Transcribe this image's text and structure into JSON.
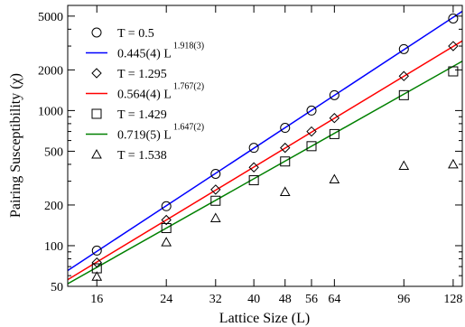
{
  "chart_data": {
    "type": "scatter",
    "title": "",
    "xlabel": "Lattice Size (L)",
    "ylabel": "Pairing Susceptibility (χ)",
    "xscale": "log",
    "yscale": "log",
    "xlim": [
      13.5,
      135
    ],
    "ylim": [
      50,
      6000
    ],
    "xticks": [
      16,
      24,
      32,
      40,
      48,
      56,
      64,
      96,
      128
    ],
    "xtick_labels": [
      "16",
      "24",
      "32",
      "40",
      "48",
      "56",
      "64",
      "96",
      "128"
    ],
    "yticks": [
      50,
      100,
      200,
      500,
      1000,
      2000,
      5000
    ],
    "ytick_labels": [
      "50",
      "100",
      "200",
      "500",
      "1000",
      "2000",
      "5000"
    ],
    "grid": false,
    "legend_position": "top-left",
    "series": [
      {
        "name": "T = 0.5",
        "kind": "points",
        "marker": "circle",
        "color": "#000000",
        "x": [
          16,
          24,
          32,
          40,
          48,
          56,
          64,
          96,
          128
        ],
        "y": [
          92,
          196,
          340,
          530,
          745,
          1000,
          1300,
          2850,
          4800
        ]
      },
      {
        "name_main": "0.445(4) L",
        "name_exp": "1.918(3)",
        "kind": "fit",
        "color": "#0000ff",
        "coef": 0.445,
        "exponent": 1.918
      },
      {
        "name": "T = 1.295",
        "kind": "points",
        "marker": "diamond",
        "color": "#000000",
        "x": [
          16,
          24,
          32,
          40,
          48,
          56,
          64,
          96,
          128
        ],
        "y": [
          75,
          155,
          260,
          380,
          530,
          700,
          880,
          1800,
          3000
        ]
      },
      {
        "name_main": "0.564(4) L",
        "name_exp": "1.767(2)",
        "kind": "fit",
        "color": "#ff0000",
        "coef": 0.564,
        "exponent": 1.767
      },
      {
        "name": "T = 1.429",
        "kind": "points",
        "marker": "square",
        "color": "#000000",
        "x": [
          16,
          24,
          32,
          40,
          48,
          56,
          64,
          96,
          128
        ],
        "y": [
          68,
          135,
          215,
          305,
          420,
          545,
          670,
          1300,
          1950
        ]
      },
      {
        "name_main": "0.719(5) L",
        "name_exp": "1.647(2)",
        "kind": "fit",
        "color": "#008000",
        "coef": 0.719,
        "exponent": 1.647
      },
      {
        "name": "T = 1.538",
        "kind": "points",
        "marker": "triangle",
        "color": "#000000",
        "x": [
          16,
          24,
          32,
          48,
          64,
          96,
          128
        ],
        "y": [
          59,
          106,
          160,
          250,
          310,
          390,
          400
        ]
      }
    ]
  }
}
